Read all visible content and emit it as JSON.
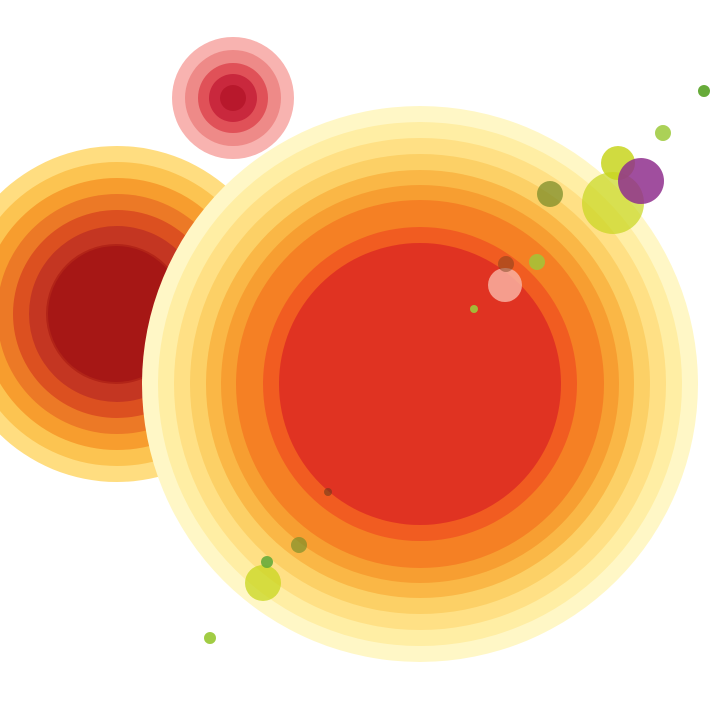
{
  "artwork": {
    "palette": {
      "background": "#ffffff",
      "sun_rings": [
        "#fff7c6",
        "#ffeca0",
        "#ffdd80",
        "#fccd60",
        "#f9b341",
        "#f69a2e",
        "#f47c24",
        "#f05a22",
        "#e03322"
      ],
      "left_rings": [
        "#ffdd80",
        "#fcc451",
        "#f79d2e",
        "#ec7926",
        "#dc5020",
        "#c43622",
        "#b22418",
        "#a61715"
      ],
      "small_rings": [
        "#f8b3b0",
        "#ee8a88",
        "#e05158",
        "#c9283d",
        "#b8182c"
      ],
      "accents": {
        "chartreuse": "#c8d51e",
        "lime": "#9cc93a",
        "green": "#67ab3a",
        "olive": "#7e8e2a",
        "purple": "#8f2f8d",
        "pink": "#f8b0a0",
        "brown": "#6e3b1a"
      }
    }
  }
}
